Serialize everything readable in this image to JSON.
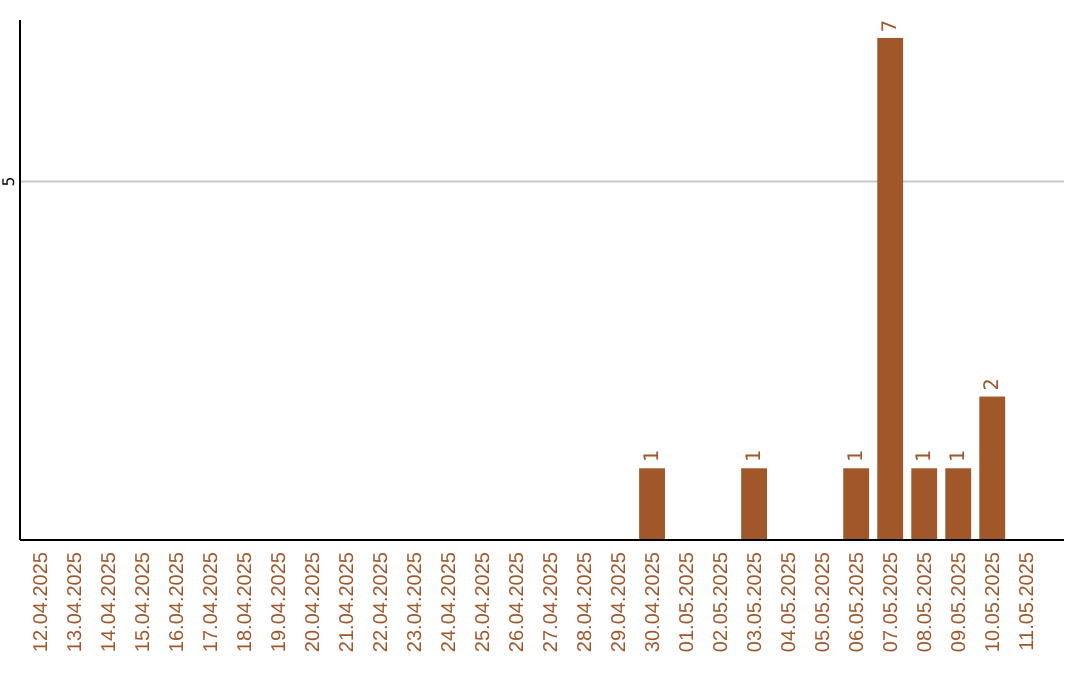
{
  "chart_data": {
    "type": "bar",
    "categories": [
      "12.04.2025",
      "13.04.2025",
      "14.04.2025",
      "15.04.2025",
      "16.04.2025",
      "17.04.2025",
      "18.04.2025",
      "19.04.2025",
      "20.04.2025",
      "21.04.2025",
      "22.04.2025",
      "23.04.2025",
      "24.04.2025",
      "25.04.2025",
      "26.04.2025",
      "27.04.2025",
      "28.04.2025",
      "29.04.2025",
      "30.04.2025",
      "01.05.2025",
      "02.05.2025",
      "03.05.2025",
      "04.05.2025",
      "05.05.2025",
      "06.05.2025",
      "07.05.2025",
      "08.05.2025",
      "09.05.2025",
      "10.05.2025",
      "11.05.2025"
    ],
    "values": [
      null,
      null,
      null,
      null,
      null,
      null,
      null,
      null,
      null,
      null,
      null,
      null,
      null,
      null,
      null,
      null,
      null,
      null,
      1,
      null,
      null,
      1,
      null,
      null,
      1,
      7,
      1,
      1,
      2,
      null
    ],
    "value_labels": [
      null,
      null,
      null,
      null,
      null,
      null,
      null,
      null,
      null,
      null,
      null,
      null,
      null,
      null,
      null,
      null,
      null,
      null,
      "1",
      null,
      null,
      "1",
      null,
      null,
      "1",
      "7",
      "1",
      "1",
      "2",
      null
    ],
    "color": "#a0572a",
    "ylim": [
      0,
      7.25
    ],
    "yticks": [
      5
    ],
    "grid": "y"
  }
}
